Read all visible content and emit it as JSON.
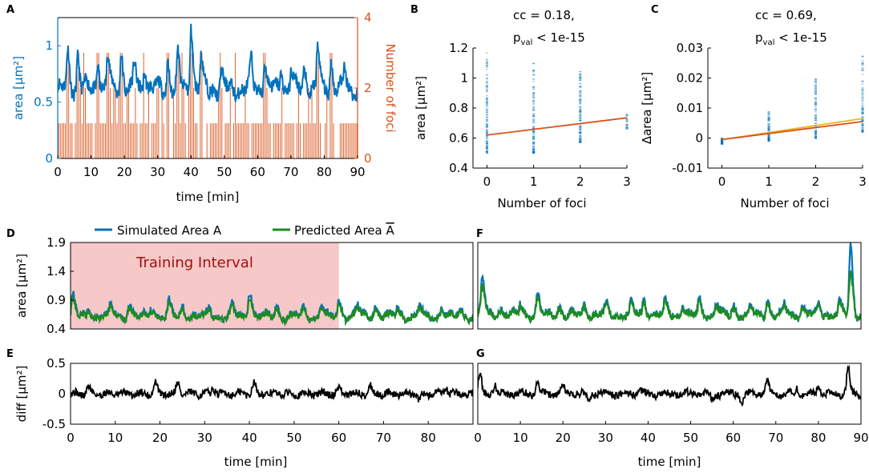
{
  "colors": {
    "area": "#0072BD",
    "foci": "#D95319",
    "predicted": "#1E8C1E",
    "fit": "#D95319",
    "fit2": "#EDB120",
    "diff": "#000000",
    "training": "#F7C8C8",
    "training_text": "#A01010"
  },
  "chart_data": [
    {
      "id": "A",
      "type": "line",
      "panel_label": "A",
      "xlabel": "time [min]",
      "ylabel_left": "area [μm²]",
      "ylabel_right": "Number of foci",
      "xlim": [
        0,
        90
      ],
      "ylim_left": [
        0,
        1.25
      ],
      "ylim_right": [
        0,
        4
      ],
      "xticks": [
        0,
        10,
        20,
        30,
        40,
        50,
        60,
        70,
        80,
        90
      ],
      "xtick_labels": [
        "0",
        "10",
        "20",
        "30",
        "40",
        "50",
        "60",
        "70",
        "80",
        "90"
      ],
      "yticks_left": [
        0,
        0.5,
        1
      ],
      "ytick_labels_left": [
        "0",
        "0.5",
        "1"
      ],
      "yticks_right": [
        0,
        2,
        4
      ],
      "ytick_labels_right": [
        "0",
        "2",
        "4"
      ],
      "series": [
        {
          "name": "area",
          "axis": "left",
          "baseline": 0.62,
          "peaks": [
            [
              3,
              0.93
            ],
            [
              6,
              0.92
            ],
            [
              12,
              0.88
            ],
            [
              15,
              0.92
            ],
            [
              19,
              0.95
            ],
            [
              23,
              0.83
            ],
            [
              26,
              0.83
            ],
            [
              33,
              0.86
            ],
            [
              36,
              0.9
            ],
            [
              40,
              1.22
            ],
            [
              43,
              0.88
            ],
            [
              49,
              0.75
            ],
            [
              58,
              0.85
            ],
            [
              62,
              0.88
            ],
            [
              67,
              0.8
            ],
            [
              70,
              0.78
            ],
            [
              74,
              0.8
            ],
            [
              78,
              0.99
            ],
            [
              82,
              0.88
            ],
            [
              86,
              0.78
            ]
          ],
          "min": 0.5
        },
        {
          "name": "number of foci",
          "axis": "right",
          "values_range": [
            0,
            3
          ],
          "common_value": 1
        }
      ]
    },
    {
      "id": "B",
      "type": "scatter",
      "panel_label": "B",
      "annotation_cc": "cc = 0.18,",
      "annotation_p_prefix": "p",
      "annotation_p_sub": "val",
      "annotation_p_suffix": " < 1e-15",
      "xlabel": "Number of foci",
      "ylabel": "area [μm²]",
      "xlim": [
        -0.3,
        3
      ],
      "ylim": [
        0.4,
        1.2
      ],
      "xticks": [
        0,
        1,
        2,
        3
      ],
      "xtick_labels": [
        "0",
        "1",
        "2",
        "3"
      ],
      "yticks": [
        0.4,
        0.6,
        0.8,
        1.0,
        1.2
      ],
      "ytick_labels": [
        "0.4",
        "0.6",
        "0.8",
        "1",
        "1.2"
      ],
      "columns": [
        {
          "x": 0,
          "min": 0.5,
          "max": 1.17
        },
        {
          "x": 1,
          "min": 0.5,
          "max": 1.1
        },
        {
          "x": 2,
          "min": 0.57,
          "max": 1.05
        },
        {
          "x": 3,
          "min": 0.66,
          "max": 0.77
        }
      ],
      "fit_line": {
        "x": [
          0,
          3
        ],
        "y": [
          0.62,
          0.735
        ]
      }
    },
    {
      "id": "C",
      "type": "scatter",
      "panel_label": "C",
      "annotation_cc": "cc = 0.69,",
      "annotation_p_prefix": "p",
      "annotation_p_sub": "val",
      "annotation_p_suffix": " < 1e-15",
      "xlabel": "Number of foci",
      "ylabel": "Δarea [μm²]",
      "xlim": [
        -0.3,
        3
      ],
      "ylim": [
        -0.01,
        0.03
      ],
      "xticks": [
        0,
        1,
        2,
        3
      ],
      "xtick_labels": [
        "0",
        "1",
        "2",
        "3"
      ],
      "yticks": [
        -0.01,
        0,
        0.01,
        0.02,
        0.03
      ],
      "ytick_labels": [
        "-0.01",
        "0",
        "0.01",
        "0.02",
        "0.03"
      ],
      "columns": [
        {
          "x": 0,
          "min": -0.002,
          "max": 0.0
        },
        {
          "x": 1,
          "min": -0.001,
          "max": 0.009
        },
        {
          "x": 2,
          "min": 0.0,
          "max": 0.02
        },
        {
          "x": 3,
          "min": 0.002,
          "max": 0.028
        }
      ],
      "fit_line": {
        "x": [
          0,
          3
        ],
        "y": [
          -0.0005,
          0.0055
        ]
      },
      "fit_line2": {
        "x": [
          0,
          3
        ],
        "y": [
          -0.0005,
          0.0065
        ]
      }
    },
    {
      "id": "D",
      "type": "line",
      "panel_label": "D",
      "legend": [
        "Simulated Area A",
        "Predicted Area Ā"
      ],
      "legend_sim": "Simulated Area A",
      "legend_pred_prefix": "Predicted Area ",
      "legend_pred_var": "A",
      "ylabel": "area [μm²]",
      "xlim": [
        0,
        90
      ],
      "ylim": [
        0.4,
        1.9
      ],
      "yticks": [
        0.4,
        0.9,
        1.4,
        1.9
      ],
      "ytick_labels": [
        "0.4",
        "0.9",
        "1.4",
        "1.9"
      ],
      "training_interval": {
        "label": "Training Interval",
        "x": [
          0,
          60
        ]
      },
      "series": [
        {
          "name": "Simulated Area A",
          "baseline": 0.62,
          "peaks": [
            [
              0.5,
              0.97
            ],
            [
              4,
              0.75
            ],
            [
              9,
              0.8
            ],
            [
              13,
              0.85
            ],
            [
              18,
              0.8
            ],
            [
              22,
              0.85
            ],
            [
              25,
              0.8
            ],
            [
              31,
              0.75
            ],
            [
              36,
              0.83
            ],
            [
              40,
              1.1
            ],
            [
              46,
              0.82
            ],
            [
              52,
              0.75
            ],
            [
              56,
              0.78
            ],
            [
              60,
              0.9
            ],
            [
              64,
              0.82
            ],
            [
              68,
              0.8
            ],
            [
              73,
              0.78
            ],
            [
              78,
              0.82
            ],
            [
              83,
              0.78
            ],
            [
              87,
              0.75
            ]
          ],
          "min": 0.45
        },
        {
          "name": "Predicted Area Ā"
        }
      ]
    },
    {
      "id": "E",
      "type": "line",
      "panel_label": "E",
      "xlabel": "time [min]",
      "ylabel": "diff [μm²]",
      "xlim": [
        0,
        90
      ],
      "ylim": [
        -0.5,
        0.5
      ],
      "xticks": [
        0,
        10,
        20,
        30,
        40,
        50,
        60,
        70,
        80
      ],
      "xtick_labels": [
        "0",
        "10",
        "20",
        "30",
        "40",
        "50",
        "60",
        "70",
        "80"
      ],
      "yticks": [
        -0.5,
        0,
        0.5
      ],
      "ytick_labels": [
        "-0.5",
        "0",
        "0.5"
      ],
      "spikes": [
        [
          4,
          0.12
        ],
        [
          19,
          0.18
        ],
        [
          24,
          0.2
        ],
        [
          32,
          0.1
        ],
        [
          41,
          0.2
        ],
        [
          60,
          0.1
        ],
        [
          67,
          0.12
        ],
        [
          78,
          -0.12
        ],
        [
          84,
          0.1
        ]
      ]
    },
    {
      "id": "F",
      "type": "line",
      "panel_label": "F",
      "xlim": [
        0,
        90
      ],
      "ylim": [
        0.4,
        1.9
      ],
      "series": [
        {
          "name": "Simulated Area A",
          "baseline": 0.65,
          "peaks": [
            [
              1,
              1.3
            ],
            [
              5,
              0.8
            ],
            [
              10,
              0.85
            ],
            [
              14,
              1.0
            ],
            [
              19,
              0.8
            ],
            [
              25,
              0.82
            ],
            [
              30,
              0.82
            ],
            [
              36,
              0.82
            ],
            [
              39,
              0.92
            ],
            [
              44,
              0.88
            ],
            [
              48,
              0.82
            ],
            [
              52,
              0.9
            ],
            [
              56,
              0.85
            ],
            [
              60,
              0.82
            ],
            [
              64,
              0.8
            ],
            [
              68,
              0.9
            ],
            [
              72,
              0.82
            ],
            [
              76,
              0.8
            ],
            [
              80,
              0.85
            ],
            [
              85,
              0.82
            ],
            [
              87.5,
              1.85
            ]
          ],
          "min": 0.45
        },
        {
          "name": "Predicted Area Ā"
        }
      ]
    },
    {
      "id": "G",
      "type": "line",
      "panel_label": "G",
      "xlabel": "time [min]",
      "xlim": [
        0,
        90
      ],
      "ylim": [
        -0.5,
        0.5
      ],
      "xticks": [
        0,
        10,
        20,
        30,
        40,
        50,
        60,
        70,
        80,
        90
      ],
      "xtick_labels": [
        "0",
        "10",
        "20",
        "30",
        "40",
        "50",
        "60",
        "70",
        "80",
        "90"
      ],
      "spikes": [
        [
          0.5,
          0.32
        ],
        [
          4,
          0.15
        ],
        [
          14,
          0.2
        ],
        [
          20,
          0.1
        ],
        [
          26,
          -0.1
        ],
        [
          38,
          0.08
        ],
        [
          55,
          -0.1
        ],
        [
          62,
          -0.15
        ],
        [
          68,
          0.2
        ],
        [
          75,
          0.1
        ],
        [
          80,
          0.1
        ],
        [
          87,
          0.42
        ]
      ]
    }
  ]
}
